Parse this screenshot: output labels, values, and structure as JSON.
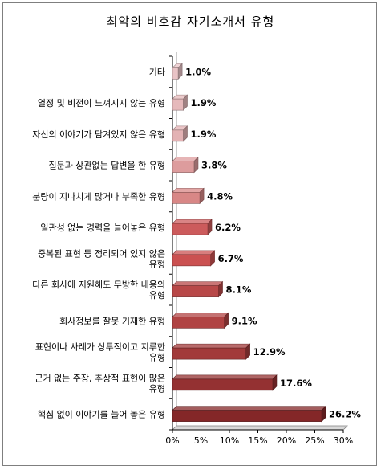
{
  "chart_data": {
    "type": "bar",
    "orientation": "horizontal",
    "title": "최악의 비호감 자기소개서 유형",
    "categories": [
      "기타",
      "열정 및 비전이 느껴지지 않는 유형",
      "자신의 이야기가 담겨있지 않은 유형",
      "질문과 상관없는 답변을 한 유형",
      "분량이 지나치게 많거나 부족한 유형",
      "일관성 없는 경력을 늘어놓은 유형",
      "중복된 표현 등 정리되어 있지 않은 유형",
      "다른 회사에 지원해도 무방한 내용의 유형",
      "회사정보를 잘못 기재한 유형",
      "표현이나 사례가 상투적이고 지루한 유형",
      "근거 없는 주장, 추상적 표현이 많은 유형",
      "핵심 없이 이야기를 늘어 놓은 유형"
    ],
    "category_lines": [
      [
        "기타"
      ],
      [
        "열정 및 비전이 느껴지지 않는 유형"
      ],
      [
        "자신의 이야기가 담겨있지 않은 유형"
      ],
      [
        "질문과 상관없는 답변을 한 유형"
      ],
      [
        "분량이 지나치게 많거나 부족한 유형"
      ],
      [
        "일관성 없는 경력을 늘어놓은 유형"
      ],
      [
        "중복된 표현 등 정리되어 있지 않은",
        "유형"
      ],
      [
        "다른 회사에 지원해도 무방한 내용의",
        "유형"
      ],
      [
        "회사정보를 잘못 기재한 유형"
      ],
      [
        "표현이나 사례가 상투적이고 지루한",
        "유형"
      ],
      [
        "근거 없는 주장, 추상적 표현이 많은",
        "유형"
      ],
      [
        "핵심 없이 이야기를 늘어 놓은 유형"
      ]
    ],
    "values": [
      1.0,
      1.9,
      1.9,
      3.8,
      4.8,
      6.2,
      6.7,
      8.1,
      9.1,
      12.9,
      17.6,
      26.2
    ],
    "value_labels": [
      "1.0%",
      "1.9%",
      "1.9%",
      "3.8%",
      "4.8%",
      "6.2%",
      "6.7%",
      "8.1%",
      "9.1%",
      "12.9%",
      "17.6%",
      "26.2%"
    ],
    "x_ticks": [
      "0%",
      "5%",
      "10%",
      "15%",
      "20%",
      "25%",
      "30%"
    ],
    "xlim": [
      0,
      30
    ],
    "grid": false,
    "legend": "none",
    "bar_colors": [
      "#e9c3c6",
      "#e6b9bb",
      "#e3b2b4",
      "#dd9c9d",
      "#d88786",
      "#cc5b5c",
      "#cb5151",
      "#b84848",
      "#b04343",
      "#a23a3a",
      "#943132",
      "#842728"
    ]
  }
}
